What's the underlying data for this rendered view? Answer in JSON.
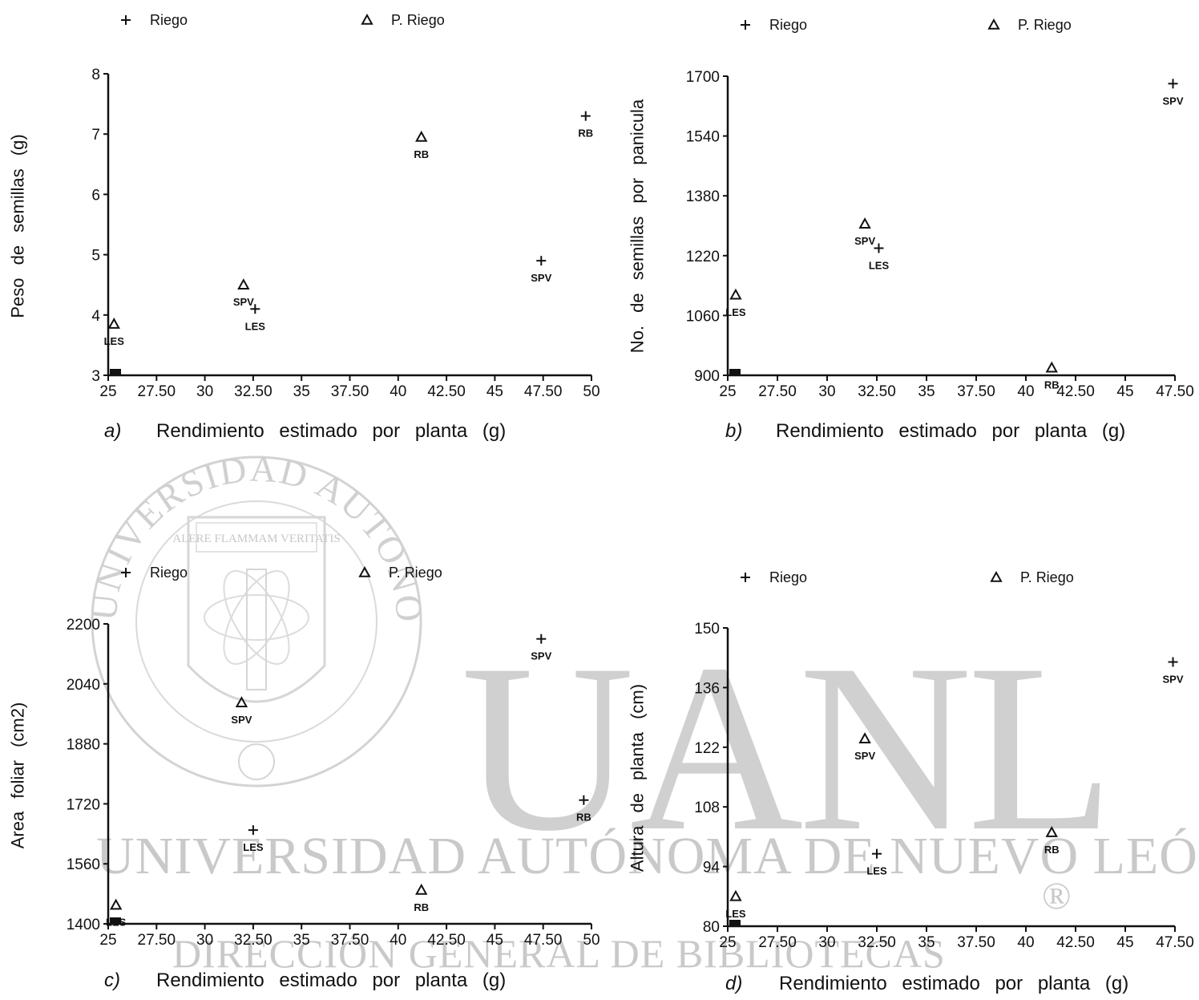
{
  "watermark": {
    "big": "UANL",
    "line1": "UNIVERSIDAD AUTÓNOMA DE NUEVO LEÓN",
    "line2": "DIRECCIÓN GENERAL DE BIBLIOTECAS",
    "registered": "®",
    "seal_text": "UNIVERSIDAD AUTONOMA DE NUEVO LEON",
    "motto": "ALERE FLAMMAM VERITATIS"
  },
  "chart_data": [
    {
      "type": "scatter",
      "panel_label": "a)",
      "xlabel": "Rendimiento estimado por planta (g)",
      "ylabel": "Peso de semillas (g)",
      "xlim": [
        25,
        50
      ],
      "ylim": [
        3,
        8
      ],
      "xticks": [
        25,
        27.5,
        30,
        32.5,
        35,
        37.5,
        40,
        42.5,
        45,
        47.5,
        50
      ],
      "xtick_labels": [
        "25",
        "27.50",
        "30",
        "32.50",
        "35",
        "37.50",
        "40",
        "42.50",
        "45",
        "47.50",
        "50"
      ],
      "yticks": [
        3,
        4,
        5,
        6,
        7,
        8
      ],
      "ytick_labels": [
        "3",
        "4",
        "5",
        "6",
        "7",
        "8"
      ],
      "legend": [
        {
          "symbol": "+",
          "label": "Riego"
        },
        {
          "symbol": "△",
          "label": "P. Riego"
        }
      ],
      "series": [
        {
          "name": "Riego",
          "marker": "+",
          "points": [
            {
              "x": 49.7,
              "y": 7.3,
              "label": "RB"
            },
            {
              "x": 47.4,
              "y": 4.9,
              "label": "SPV"
            },
            {
              "x": 32.6,
              "y": 4.1,
              "label": "LES"
            }
          ]
        },
        {
          "name": "P. Riego",
          "marker": "triangle",
          "points": [
            {
              "x": 41.2,
              "y": 6.95,
              "label": "RB"
            },
            {
              "x": 32.0,
              "y": 4.5,
              "label": "SPV"
            },
            {
              "x": 25.3,
              "y": 3.85,
              "label": "LES"
            }
          ]
        }
      ]
    },
    {
      "type": "scatter",
      "panel_label": "b)",
      "xlabel": "Rendimiento estimado por planta (g)",
      "ylabel": "No. de semillas por panicula",
      "xlim": [
        25,
        47.5
      ],
      "ylim": [
        900,
        1700
      ],
      "xticks": [
        25,
        27.5,
        30,
        32.5,
        35,
        37.5,
        40,
        42.5,
        45,
        47.5
      ],
      "xtick_labels": [
        "25",
        "27.50",
        "30",
        "32.50",
        "35",
        "37.50",
        "40",
        "42.50",
        "45",
        "47.50"
      ],
      "yticks": [
        900,
        1060,
        1220,
        1380,
        1540,
        1700
      ],
      "ytick_labels": [
        "900",
        "1060",
        "1220",
        "1380",
        "1540",
        "1700"
      ],
      "legend": [
        {
          "symbol": "+",
          "label": "Riego"
        },
        {
          "symbol": "△",
          "label": "P. Riego"
        }
      ],
      "series": [
        {
          "name": "Riego",
          "marker": "+",
          "points": [
            {
              "x": 47.4,
              "y": 1680,
              "label": "SPV"
            },
            {
              "x": 32.6,
              "y": 1240,
              "label": "LES"
            }
          ]
        },
        {
          "name": "P. Riego",
          "marker": "triangle",
          "points": [
            {
              "x": 31.9,
              "y": 1305,
              "label": "SPV"
            },
            {
              "x": 25.4,
              "y": 1115,
              "label": "LES"
            },
            {
              "x": 41.3,
              "y": 920,
              "label": "RB"
            }
          ]
        }
      ]
    },
    {
      "type": "scatter",
      "panel_label": "c)",
      "xlabel": "Rendimiento estimado por planta (g)",
      "ylabel": "Area foliar (cm2)",
      "xlim": [
        25,
        50
      ],
      "ylim": [
        1400,
        2200
      ],
      "xticks": [
        25,
        27.5,
        30,
        32.5,
        35,
        37.5,
        40,
        42.5,
        45,
        47.5,
        50
      ],
      "xtick_labels": [
        "25",
        "27.50",
        "30",
        "32.50",
        "35",
        "37.50",
        "40",
        "42.50",
        "45",
        "47.50",
        "50"
      ],
      "yticks": [
        1400,
        1560,
        1720,
        1880,
        2040,
        2200
      ],
      "ytick_labels": [
        "1400",
        "1560",
        "1720",
        "1880",
        "2040",
        "2200"
      ],
      "legend": [
        {
          "symbol": "+",
          "label": "Riego"
        },
        {
          "symbol": "△",
          "label": "P. Riego"
        }
      ],
      "series": [
        {
          "name": "Riego",
          "marker": "+",
          "points": [
            {
              "x": 47.4,
              "y": 2160,
              "label": "SPV"
            },
            {
              "x": 49.6,
              "y": 1730,
              "label": "RB"
            },
            {
              "x": 32.5,
              "y": 1650,
              "label": "LES"
            }
          ]
        },
        {
          "name": "P. Riego",
          "marker": "triangle",
          "points": [
            {
              "x": 31.9,
              "y": 1990,
              "label": "SPV"
            },
            {
              "x": 41.2,
              "y": 1490,
              "label": "RB"
            },
            {
              "x": 25.4,
              "y": 1450,
              "label": "LES"
            }
          ]
        }
      ]
    },
    {
      "type": "scatter",
      "panel_label": "d)",
      "xlabel": "Rendimiento estimado por planta (g)",
      "ylabel": "Altura de planta (cm)",
      "xlim": [
        25,
        47.5
      ],
      "ylim": [
        80,
        150
      ],
      "xticks": [
        25,
        27.5,
        30,
        32.5,
        35,
        37.5,
        40,
        42.5,
        45,
        47.5
      ],
      "xtick_labels": [
        "25",
        "27.50",
        "30",
        "32.50",
        "35",
        "37.50",
        "40",
        "42.50",
        "45",
        "47.50"
      ],
      "yticks": [
        80,
        94,
        108,
        122,
        136,
        150
      ],
      "ytick_labels": [
        "80",
        "94",
        "108",
        "122",
        "136",
        "150"
      ],
      "legend": [
        {
          "symbol": "+",
          "label": "Riego"
        },
        {
          "symbol": "△",
          "label": "P. Riego"
        }
      ],
      "series": [
        {
          "name": "Riego",
          "marker": "+",
          "points": [
            {
              "x": 47.4,
              "y": 142,
              "label": "SPV"
            },
            {
              "x": 32.5,
              "y": 97,
              "label": "LES"
            }
          ]
        },
        {
          "name": "P. Riego",
          "marker": "triangle",
          "points": [
            {
              "x": 31.9,
              "y": 124,
              "label": "SPV"
            },
            {
              "x": 41.3,
              "y": 102,
              "label": "RB"
            },
            {
              "x": 25.4,
              "y": 87,
              "label": "LES"
            }
          ]
        }
      ]
    }
  ]
}
